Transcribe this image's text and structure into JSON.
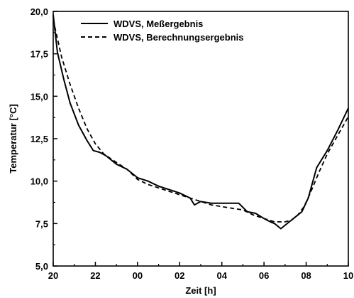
{
  "chart_data": {
    "type": "line",
    "xlabel": "Zeit [h]",
    "ylabel": "Temperatur [°C]",
    "x_ticks": [
      "20",
      "22",
      "00",
      "02",
      "04",
      "06",
      "08",
      "10"
    ],
    "y_ticks": [
      "5,0",
      "7,5",
      "10,0",
      "12,5",
      "15,0",
      "17,5",
      "20,0"
    ],
    "xlim": [
      20,
      34
    ],
    "ylim": [
      5.0,
      20.0
    ],
    "grid": false,
    "legend_position": "top-left",
    "series": [
      {
        "name": "WDVS, Meßergebnis",
        "style": "solid",
        "x": [
          20.0,
          20.2,
          20.5,
          20.8,
          21.2,
          21.6,
          21.9,
          22.2,
          22.5,
          23.0,
          23.5,
          24.0,
          24.5,
          25.0,
          25.5,
          26.0,
          26.5,
          26.7,
          27.0,
          27.5,
          28.0,
          28.5,
          28.8,
          29.2,
          29.6,
          30.0,
          30.3,
          30.5,
          30.8,
          31.2,
          31.5,
          31.8,
          32.1,
          32.5,
          33.0,
          33.5,
          34.0
        ],
        "y": [
          19.8,
          17.6,
          16.0,
          14.6,
          13.3,
          12.4,
          11.8,
          11.7,
          11.5,
          11.0,
          10.7,
          10.2,
          10.0,
          9.7,
          9.5,
          9.3,
          9.0,
          8.6,
          8.8,
          8.7,
          8.7,
          8.7,
          8.7,
          8.2,
          8.1,
          7.8,
          7.6,
          7.5,
          7.2,
          7.6,
          7.9,
          8.2,
          9.0,
          10.8,
          11.8,
          13.0,
          14.3
        ]
      },
      {
        "name": "WDVS, Berechnungsergebnis",
        "style": "dashed",
        "x": [
          20.0,
          20.4,
          20.8,
          21.2,
          21.6,
          22.0,
          22.4,
          23.0,
          23.5,
          24.0,
          24.5,
          25.0,
          25.5,
          26.0,
          26.5,
          27.0,
          27.5,
          28.0,
          28.5,
          29.0,
          29.5,
          30.0,
          30.5,
          31.0,
          31.3,
          31.6,
          31.9,
          32.2,
          32.6,
          33.0,
          33.5,
          34.0
        ],
        "y": [
          19.5,
          17.3,
          15.7,
          14.3,
          13.1,
          12.2,
          11.6,
          11.1,
          10.7,
          10.1,
          9.8,
          9.6,
          9.4,
          9.2,
          9.0,
          8.8,
          8.6,
          8.5,
          8.4,
          8.3,
          8.0,
          7.8,
          7.6,
          7.6,
          7.7,
          8.0,
          8.5,
          9.3,
          10.5,
          11.6,
          12.7,
          13.8
        ]
      }
    ]
  }
}
